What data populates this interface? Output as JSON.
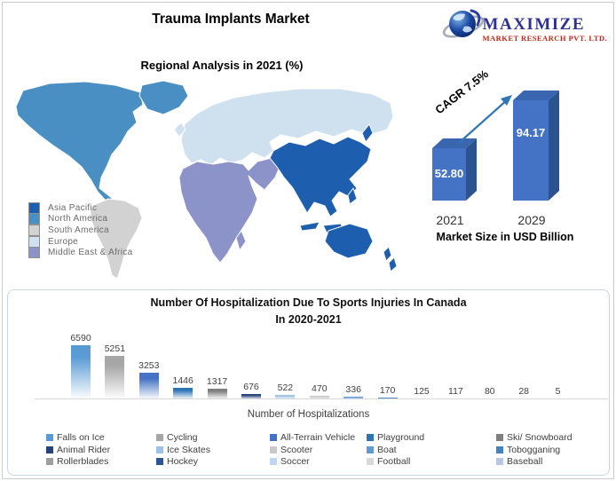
{
  "page": {
    "title": "Trauma Implants Market"
  },
  "logo": {
    "brand": "MAXIMIZE",
    "subbrand": "MARKET RESEARCH PVT. LTD.",
    "globe_icon": "globe-swoosh-icon",
    "brand_color": "#2e3192",
    "subbrand_color": "#c0281c"
  },
  "regional": {
    "title": "Regional Analysis in 2021 (%)",
    "legend": [
      {
        "label": "Asia Pacific",
        "color": "#1d5fae"
      },
      {
        "label": "North America",
        "color": "#4a8fc4"
      },
      {
        "label": "South America",
        "color": "#d2d2d2"
      },
      {
        "label": "Europe",
        "color": "#cfe0ee"
      },
      {
        "label": "Middle East & Africa",
        "color": "#8b93c9"
      }
    ]
  },
  "growth": {
    "cagr_label": "CAGR 7.5%",
    "axis_label": "Market Size in USD Billion",
    "years": [
      "2021",
      "2029"
    ],
    "values": [
      "52.80",
      "94.17"
    ],
    "bar_front": "#4472c4",
    "bar_top": "#3a66b0",
    "bar_side": "#2d5290",
    "arrow_color": "#2e75b6"
  },
  "hospital": {
    "title_line1": "Number Of Hospitalization Due To Sports Injuries In Canada",
    "title_line2": "In 2020-2021",
    "axis_label": "Number of Hospitalizations",
    "series": [
      {
        "name": "Falls on Ice",
        "value": 6590,
        "color": "#5b9bd5"
      },
      {
        "name": "Cycling",
        "value": 5251,
        "color": "#a6a6a6"
      },
      {
        "name": "All-Terrain Vehicle",
        "value": 3253,
        "color": "#4472c4"
      },
      {
        "name": "Playground",
        "value": 1446,
        "color": "#2e75b6"
      },
      {
        "name": "Ski/ Snowboard",
        "value": 1317,
        "color": "#7f7f7f"
      },
      {
        "name": "Animal Rider",
        "value": 676,
        "color": "#264478"
      },
      {
        "name": "Ice Skates",
        "value": 522,
        "color": "#9dc3e6"
      },
      {
        "name": "Scooter",
        "value": 470,
        "color": "#c9c9c9"
      },
      {
        "name": "Boat",
        "value": 336,
        "color": "#6299d3"
      },
      {
        "name": "Tobogganing",
        "value": 170,
        "color": "#3d85c6"
      },
      {
        "name": "Rollerblades",
        "value": 125,
        "color": "#9e9e9e"
      },
      {
        "name": "Hockey",
        "value": 117,
        "color": "#2f5597"
      },
      {
        "name": "Soccer",
        "value": 80,
        "color": "#bdd7ee"
      },
      {
        "name": "Football",
        "value": 28,
        "color": "#d9d9d9"
      },
      {
        "name": "Baseball",
        "value": 5,
        "color": "#b4c7e7"
      }
    ]
  },
  "chart_data": [
    {
      "type": "bar",
      "title": "Market Size in USD Billion",
      "categories": [
        "2021",
        "2029"
      ],
      "values": [
        52.8,
        94.17
      ],
      "annotation": "CAGR 7.5%",
      "ylim": [
        0,
        100
      ],
      "bar_color": "#4472c4",
      "style": "3d-column"
    },
    {
      "type": "bar",
      "title": "Number Of Hospitalization Due To Sports Injuries In Canada In 2020-2021",
      "xlabel": "Number of Hospitalizations",
      "categories": [
        "Falls on Ice",
        "Cycling",
        "All-Terrain Vehicle",
        "Playground",
        "Ski/ Snowboard",
        "Animal Rider",
        "Ice Skates",
        "Scooter",
        "Boat",
        "Tobogganing",
        "Rollerblades",
        "Hockey",
        "Soccer",
        "Football",
        "Baseball"
      ],
      "values": [
        6590,
        5251,
        3253,
        1446,
        1317,
        676,
        522,
        470,
        336,
        170,
        125,
        117,
        80,
        28,
        5
      ],
      "ylim": [
        0,
        6590
      ],
      "grid": false,
      "legend_position": "bottom",
      "data_labels": true
    }
  ]
}
